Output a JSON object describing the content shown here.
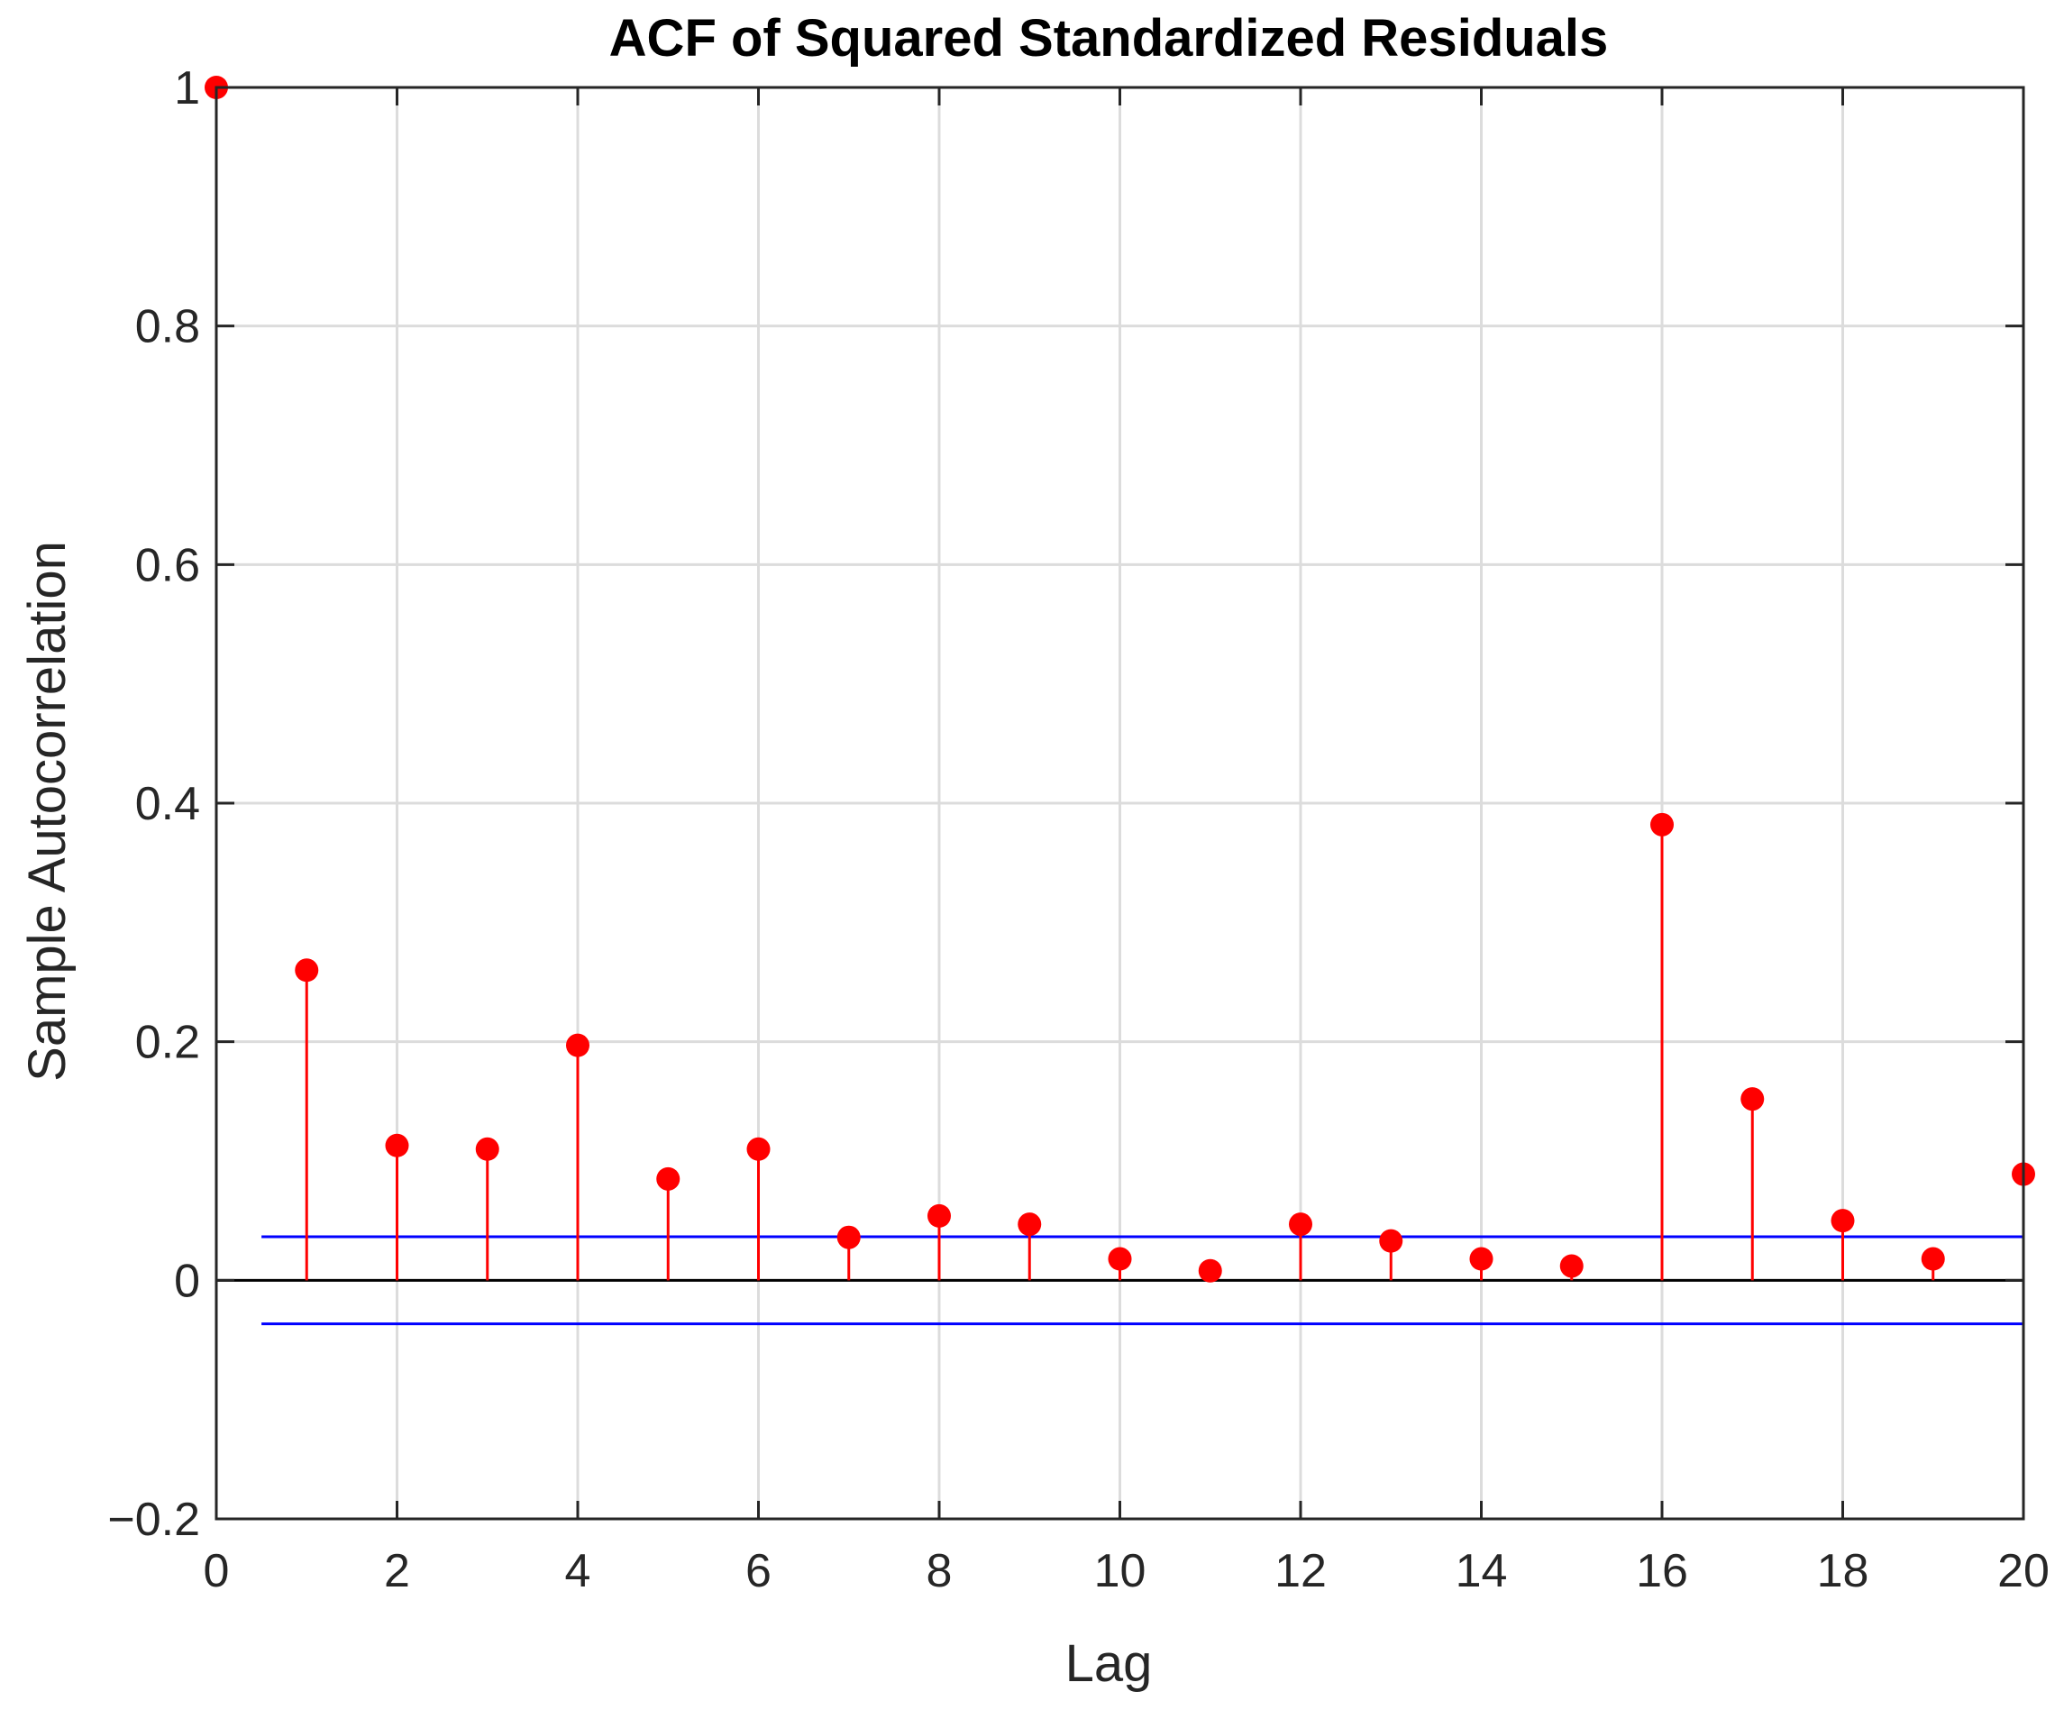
{
  "chart_data": {
    "type": "stem",
    "title": "ACF of Squared Standardized Residuals",
    "xlabel": "Lag",
    "ylabel": "Sample Autocorrelation",
    "xlim": [
      0,
      20
    ],
    "ylim": [
      -0.2,
      1
    ],
    "x_ticks": [
      0,
      2,
      4,
      6,
      8,
      10,
      12,
      14,
      16,
      18,
      20
    ],
    "x_tick_labels": [
      "0",
      "2",
      "4",
      "6",
      "8",
      "10",
      "12",
      "14",
      "16",
      "18",
      "20"
    ],
    "y_ticks": [
      -0.2,
      0,
      0.2,
      0.4,
      0.6,
      0.8,
      1
    ],
    "y_tick_labels": [
      "−0.2",
      "0",
      "0.2",
      "0.4",
      "0.6",
      "0.8",
      "1"
    ],
    "grid": true,
    "lags": [
      0,
      1,
      2,
      3,
      4,
      5,
      6,
      7,
      8,
      9,
      10,
      11,
      12,
      13,
      14,
      15,
      16,
      17,
      18,
      19,
      20
    ],
    "acf": [
      1.0,
      0.26,
      0.113,
      0.11,
      0.197,
      0.085,
      0.11,
      0.036,
      0.054,
      0.047,
      0.018,
      0.008,
      0.047,
      0.033,
      0.018,
      0.012,
      0.382,
      0.152,
      0.05,
      0.018,
      0.089
    ],
    "confidence_bounds": {
      "upper": 0.0365,
      "lower": -0.0365,
      "x_range": [
        0.5,
        20
      ]
    },
    "colors": {
      "stem": "#ff0000",
      "bounds": "#0000ff",
      "zero_line": "#000000",
      "grid": "#dcdcdc",
      "axes": "#262626"
    }
  }
}
